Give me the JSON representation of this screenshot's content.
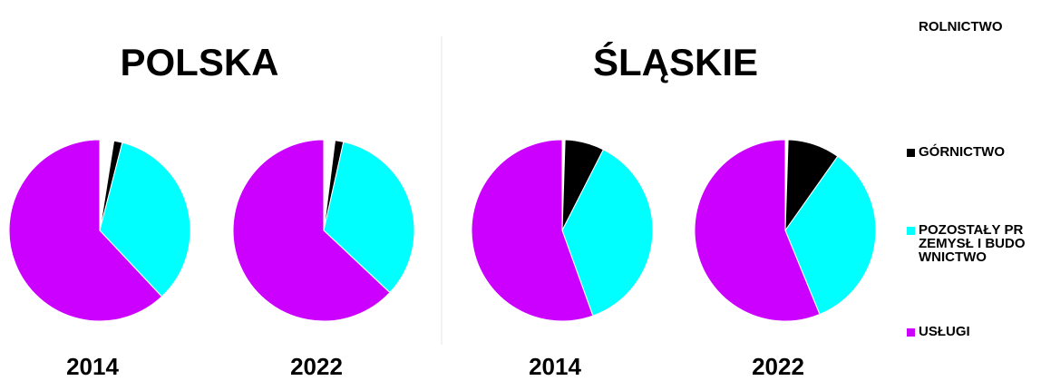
{
  "chart_data": [
    {
      "type": "pie",
      "title": "POLSKA",
      "categories": [
        "2014",
        "2022"
      ],
      "values": [
        [
          2.5,
          1.5,
          34,
          62
        ],
        [
          2,
          1.5,
          33.5,
          63
        ]
      ]
    },
    {
      "type": "pie",
      "title": "ŚLĄSKIE",
      "categories": [
        "2014",
        "2022"
      ],
      "values": [
        [
          0.5,
          7,
          37,
          55.5
        ],
        [
          0.5,
          9.3,
          34,
          56.2
        ]
      ]
    }
  ],
  "legend": {
    "names": [
      "ROLNICTWO",
      "GÓRNICTWO",
      "POZOSTAŁY PRZEMYSŁ I BUDOWNICTWO",
      "USŁUGI"
    ],
    "colors": [
      "#ffffff",
      "#000000",
      "#00ffff",
      "#cc00ff"
    ]
  }
}
